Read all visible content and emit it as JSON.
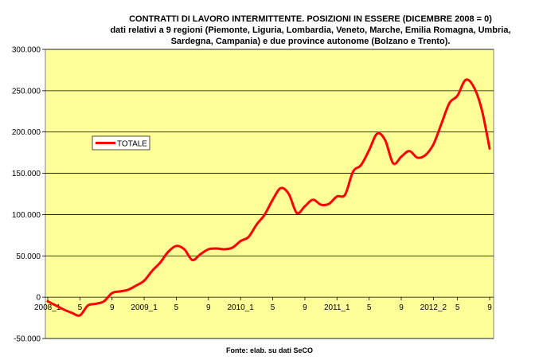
{
  "title_lines": [
    "CONTRATTI DI LAVORO INTERMITTENTE. POSIZIONI IN ESSERE (DICEMBRE 2008 = 0)",
    "dati relativi a 9 regioni (Piemonte, Liguria, Lombardia, Veneto, Marche, Emilia Romagna, Umbria,",
    "Sardegna, Campania) e due province autonome (Bolzano e Trento)."
  ],
  "source": "Fonte: elab. su dati SeCO",
  "colors": {
    "plot_bg": "#ffff99",
    "series": "#ff0000",
    "grid": "#000000"
  },
  "chart_data": {
    "type": "line",
    "ylim": [
      -50000,
      300000
    ],
    "yticks": [
      -50000,
      0,
      50000,
      100000,
      150000,
      200000,
      250000,
      300000
    ],
    "ytick_labels": [
      "-50.000",
      "0",
      "50.000",
      "100.000",
      "150.000",
      "200.000",
      "250.000",
      "300.000"
    ],
    "grid": true,
    "legend_position": "upper-left inside plot",
    "x_tick_labels": [
      {
        "i": 0,
        "label": "2008_1"
      },
      {
        "i": 4,
        "label": "5"
      },
      {
        "i": 8,
        "label": "9"
      },
      {
        "i": 12,
        "label": "2009_1"
      },
      {
        "i": 16,
        "label": "5"
      },
      {
        "i": 20,
        "label": "9"
      },
      {
        "i": 24,
        "label": "2010_1"
      },
      {
        "i": 28,
        "label": "5"
      },
      {
        "i": 32,
        "label": "9"
      },
      {
        "i": 36,
        "label": "2011_1"
      },
      {
        "i": 40,
        "label": "5"
      },
      {
        "i": 44,
        "label": "9"
      },
      {
        "i": 48,
        "label": "2012_2"
      },
      {
        "i": 51,
        "label": "5"
      },
      {
        "i": 55,
        "label": "9"
      }
    ],
    "series": [
      {
        "name": "TOTALE",
        "values": [
          -5000,
          -10000,
          -15000,
          -19000,
          -22000,
          -10000,
          -8000,
          -5000,
          5000,
          7000,
          9000,
          14000,
          20000,
          32000,
          42000,
          55000,
          62000,
          58000,
          45000,
          52000,
          58000,
          59000,
          58000,
          60000,
          68000,
          73000,
          88000,
          100000,
          118000,
          132000,
          125000,
          102000,
          110000,
          118000,
          112000,
          113000,
          122000,
          124000,
          152000,
          160000,
          178000,
          198000,
          190000,
          162000,
          170000,
          177000,
          169000,
          172000,
          185000,
          210000,
          235000,
          244000,
          263000,
          255000,
          228000,
          180000
        ]
      }
    ]
  }
}
